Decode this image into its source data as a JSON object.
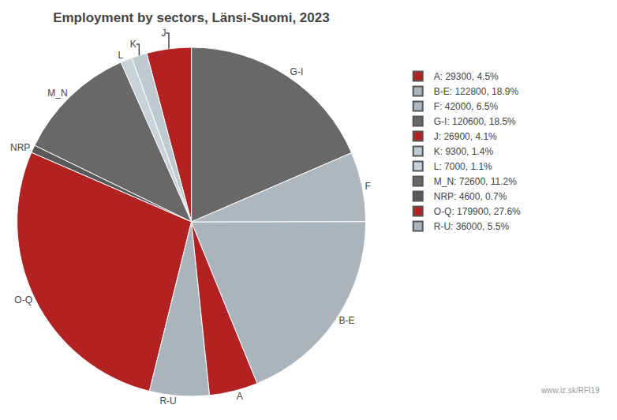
{
  "chart_data": {
    "type": "pie",
    "title": "Employment by sectors, Länsi-Suomi, 2023",
    "categories": [
      "G-I",
      "J",
      "K",
      "L",
      "M_N",
      "NRP",
      "O-Q",
      "R-U",
      "A",
      "B-E",
      "F"
    ],
    "values": [
      120600,
      26900,
      9300,
      7000,
      72600,
      4600,
      179900,
      36000,
      29300,
      122800,
      42000
    ],
    "colors": [
      "#686868",
      "#b22222",
      "#c0cace",
      "#c8d2d8",
      "#686868",
      "#595959",
      "#b22222",
      "#aab4bc",
      "#b22222",
      "#aab4bc",
      "#b0b8be"
    ],
    "legend_labels": [
      "A: 29300, 4.5%",
      "B-E: 122800, 18.9%",
      "F: 42000, 6.5%",
      "G-I: 120600, 18.5%",
      "J: 26900, 4.1%",
      "K: 9300, 1.4%",
      "L: 7000, 1.1%",
      "M_N: 72600, 11.2%",
      "NRP: 4600, 0.7%",
      "O-Q: 179900, 27.6%",
      "R-U: 36000, 5.5%"
    ],
    "legend_colors": [
      "#b22222",
      "#aab4bc",
      "#b0b8be",
      "#686868",
      "#b22222",
      "#c0cace",
      "#c8d2d8",
      "#686868",
      "#595959",
      "#b22222",
      "#aab4bc"
    ],
    "legend": "right",
    "annotations": [
      {
        "text": "www.iz.sk/RFI19"
      }
    ]
  }
}
